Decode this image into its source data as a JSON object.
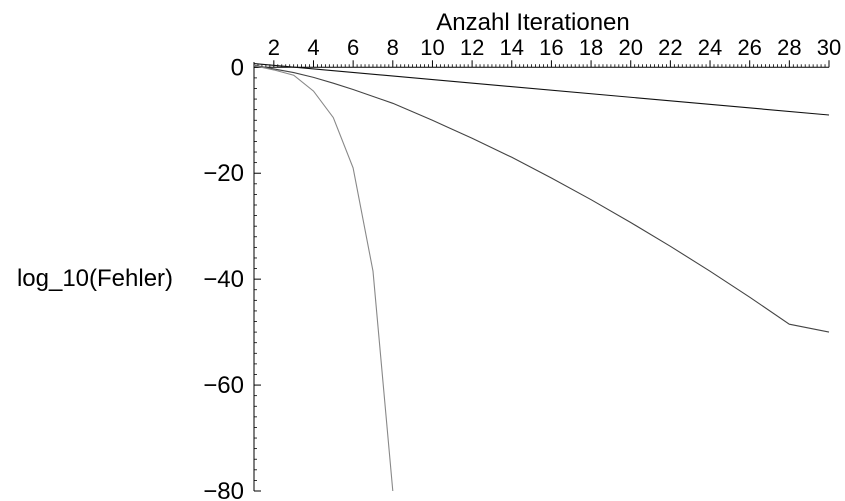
{
  "chart_data": {
    "type": "line",
    "xlabel": "Anzahl Iterationen",
    "ylabel": "log_10(Fehler)",
    "xlim": [
      1,
      30
    ],
    "ylim": [
      -80,
      1
    ],
    "x_ticks": [
      2,
      4,
      6,
      8,
      10,
      12,
      14,
      16,
      18,
      20,
      22,
      24,
      26,
      28,
      30
    ],
    "y_ticks": [
      0,
      -20,
      -40,
      -60,
      -80
    ],
    "x_tick_labels": [
      "2",
      "4",
      "6",
      "8",
      "10",
      "12",
      "14",
      "16",
      "18",
      "20",
      "22",
      "24",
      "26",
      "28",
      "30"
    ],
    "y_tick_labels": [
      "0",
      "−20",
      "−40",
      "−60",
      "−80"
    ],
    "grid": false,
    "series": [
      {
        "color": "#111111",
        "x": [
          1,
          30
        ],
        "y": [
          0.7,
          -9.0
        ]
      },
      {
        "color": "#444444",
        "x": [
          1,
          2,
          3,
          4,
          5,
          6,
          8,
          10,
          12,
          14,
          16,
          18,
          20,
          22,
          24,
          26,
          28,
          30
        ],
        "y": [
          0.4,
          -0.3,
          -1.0,
          -1.9,
          -3.0,
          -4.2,
          -6.8,
          -10.0,
          -13.4,
          -17.0,
          -20.9,
          -25.0,
          -29.3,
          -33.8,
          -38.5,
          -43.4,
          -48.5,
          -50.0
        ]
      },
      {
        "color": "#888888",
        "x": [
          1,
          2,
          3,
          4,
          5,
          6,
          7,
          8
        ],
        "y": [
          0.3,
          -0.5,
          -1.5,
          -4.5,
          -9.5,
          -19.0,
          -38.5,
          -80.0
        ]
      }
    ]
  }
}
